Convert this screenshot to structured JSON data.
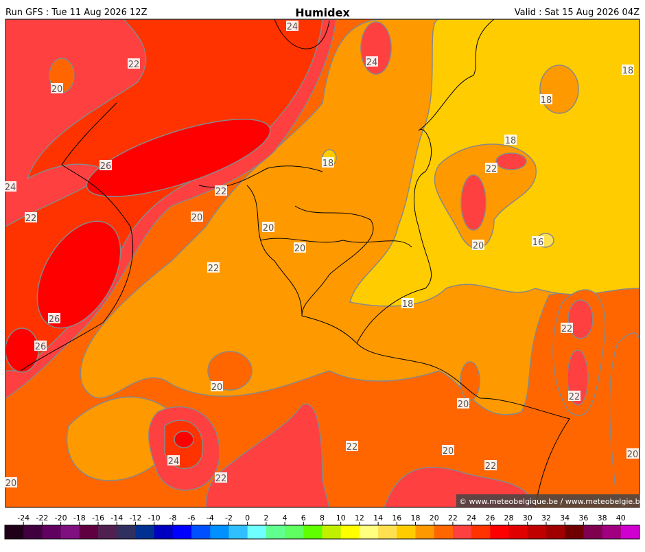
{
  "header": {
    "run": "Run GFS : Tue 11 Aug 2026 12Z",
    "title": "Humidex",
    "valid": "Valid : Sat 15 Aug 2026 04Z"
  },
  "credit": "© www.meteobelgique.be / www.meteobelgie.be",
  "contour_labels": [
    24,
    22,
    20,
    24,
    18,
    18,
    18,
    26,
    18,
    22,
    24,
    22,
    22,
    20,
    20,
    20,
    20,
    16,
    22,
    18,
    26,
    22,
    26,
    20,
    22,
    20,
    24,
    22,
    20,
    20,
    22,
    22,
    20
  ],
  "colorbar": {
    "ticks": [
      -24,
      -22,
      -20,
      -18,
      -16,
      -14,
      -12,
      -10,
      -8,
      -6,
      -4,
      -2,
      0,
      2,
      4,
      6,
      8,
      10,
      12,
      14,
      16,
      18,
      20,
      22,
      24,
      26,
      28,
      30,
      32,
      34,
      36,
      38,
      40
    ],
    "colors": [
      "#200018",
      "#400040",
      "#600060",
      "#801080",
      "#600040",
      "#502050",
      "#303060",
      "#003090",
      "#0000c0",
      "#0000ff",
      "#0050ff",
      "#0090ff",
      "#30c0ff",
      "#70ffff",
      "#60ff90",
      "#60ff60",
      "#60ff00",
      "#c0f000",
      "#ffff00",
      "#ffff80",
      "#ffe050",
      "#ffcc00",
      "#ff9900",
      "#ff6600",
      "#ff4040",
      "#ff3300",
      "#ff0000",
      "#e00000",
      "#c00000",
      "#a00000",
      "#700000",
      "#800050",
      "#a00080",
      "#d000d0"
    ]
  }
}
